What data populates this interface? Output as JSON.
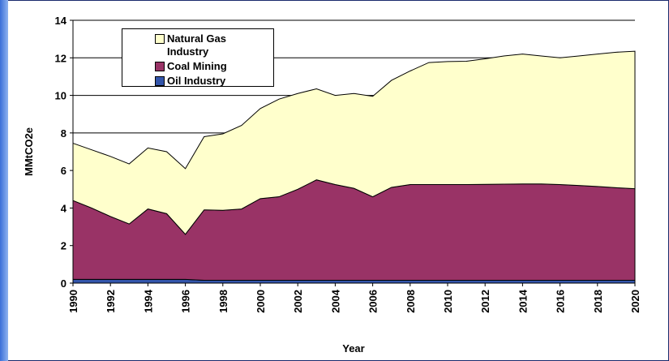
{
  "chart_data": {
    "type": "stacked-area",
    "xlabel": "Year",
    "ylabel": "MMtCO2e",
    "x": [
      1990,
      1991,
      1992,
      1993,
      1994,
      1995,
      1996,
      1997,
      1998,
      1999,
      2000,
      2001,
      2002,
      2003,
      2004,
      2005,
      2006,
      2007,
      2008,
      2009,
      2010,
      2011,
      2012,
      2013,
      2014,
      2015,
      2016,
      2017,
      2018,
      2019,
      2020
    ],
    "series": [
      {
        "name": "Oil Industry",
        "color": "#3355aa",
        "values": [
          0.2,
          0.2,
          0.2,
          0.2,
          0.2,
          0.2,
          0.2,
          0.15,
          0.15,
          0.15,
          0.15,
          0.15,
          0.15,
          0.15,
          0.15,
          0.15,
          0.15,
          0.15,
          0.15,
          0.15,
          0.15,
          0.15,
          0.15,
          0.15,
          0.15,
          0.15,
          0.15,
          0.15,
          0.15,
          0.15,
          0.15
        ]
      },
      {
        "name": "Coal Mining",
        "color": "#993366",
        "values": [
          4.2,
          3.8,
          3.35,
          2.95,
          3.75,
          3.5,
          2.4,
          3.75,
          3.73,
          3.8,
          4.35,
          4.45,
          4.85,
          5.35,
          5.1,
          4.9,
          4.45,
          4.95,
          5.1,
          5.1,
          5.1,
          5.1,
          5.11,
          5.12,
          5.13,
          5.13,
          5.1,
          5.05,
          5.0,
          4.93,
          4.88
        ]
      },
      {
        "name": "Natural Gas Industry",
        "color": "#ffffcc",
        "values": [
          3.05,
          3.1,
          3.2,
          3.2,
          3.25,
          3.3,
          3.5,
          3.9,
          4.07,
          4.45,
          4.8,
          5.2,
          5.1,
          4.85,
          4.75,
          5.05,
          5.35,
          5.7,
          6.05,
          6.5,
          6.55,
          6.57,
          6.69,
          6.83,
          6.92,
          6.82,
          6.75,
          6.9,
          7.05,
          7.22,
          7.32
        ]
      }
    ],
    "xlim": [
      1990,
      2020
    ],
    "xticks": [
      1990,
      1992,
      1994,
      1996,
      1998,
      2000,
      2002,
      2004,
      2006,
      2008,
      2010,
      2012,
      2014,
      2016,
      2018,
      2020
    ],
    "ylim": [
      0,
      14
    ],
    "yticks": [
      0,
      2,
      4,
      6,
      8,
      10,
      12,
      14
    ],
    "grid": true
  }
}
